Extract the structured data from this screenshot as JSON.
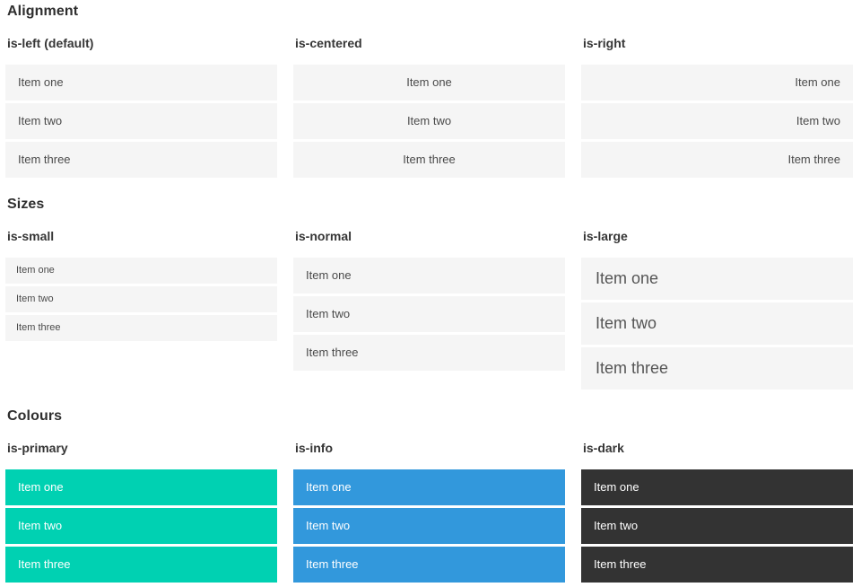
{
  "colors": {
    "primary": "#00d1b2",
    "info": "#3298dc",
    "dark": "#333333",
    "item_bg": "#f5f5f5"
  },
  "sections": [
    {
      "title": "Alignment",
      "groups": [
        {
          "label": "is-left (default)",
          "items": [
            "Item one",
            "Item two",
            "Item three"
          ]
        },
        {
          "label": "is-centered",
          "items": [
            "Item one",
            "Item two",
            "Item three"
          ]
        },
        {
          "label": "is-right",
          "items": [
            "Item one",
            "Item two",
            "Item three"
          ]
        }
      ]
    },
    {
      "title": "Sizes",
      "groups": [
        {
          "label": "is-small",
          "items": [
            "Item one",
            "Item two",
            "Item three"
          ]
        },
        {
          "label": "is-normal",
          "items": [
            "Item one",
            "Item two",
            "Item three"
          ]
        },
        {
          "label": "is-large",
          "items": [
            "Item one",
            "Item two",
            "Item three"
          ]
        }
      ]
    },
    {
      "title": "Colours",
      "groups": [
        {
          "label": "is-primary",
          "items": [
            "Item one",
            "Item two",
            "Item three"
          ]
        },
        {
          "label": "is-info",
          "items": [
            "Item one",
            "Item two",
            "Item three"
          ]
        },
        {
          "label": "is-dark",
          "items": [
            "Item one",
            "Item two",
            "Item three"
          ]
        }
      ]
    }
  ]
}
